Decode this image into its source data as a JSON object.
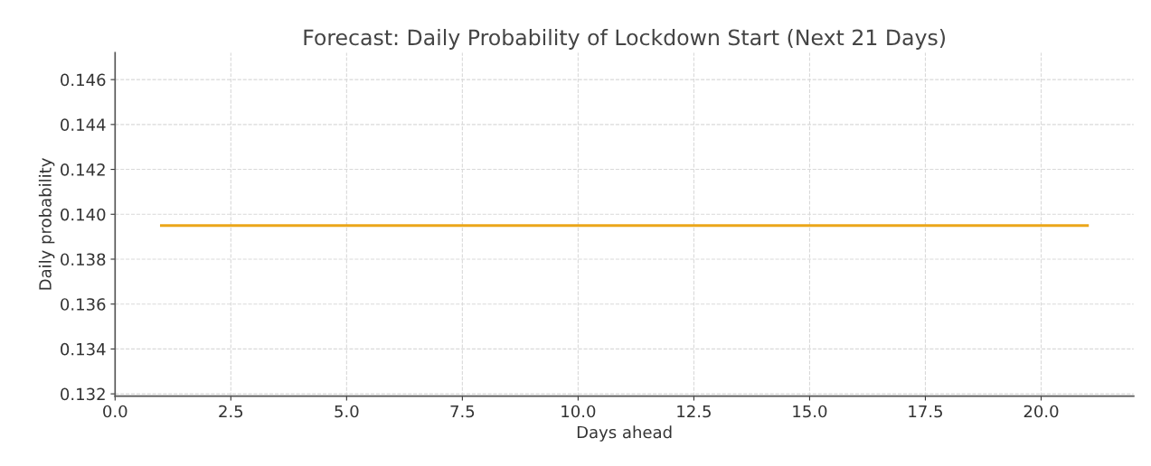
{
  "chart_data": {
    "type": "line",
    "title": "Forecast: Daily Probability of Lockdown Start (Next 21 Days)",
    "xlabel": "Days ahead",
    "ylabel": "Daily probability",
    "x": [
      1,
      21
    ],
    "series": [
      {
        "color": "#eba619",
        "values": [
          0.1395,
          0.1395
        ]
      }
    ],
    "xlim": [
      0,
      22
    ],
    "xticks": [
      {
        "value": 0,
        "label": "0.0"
      },
      {
        "value": 2.5,
        "label": "2.5"
      },
      {
        "value": 5,
        "label": "5.0"
      },
      {
        "value": 7.5,
        "label": "7.5"
      },
      {
        "value": 10,
        "label": "10.0"
      },
      {
        "value": 12.5,
        "label": "12.5"
      },
      {
        "value": 15,
        "label": "15.0"
      },
      {
        "value": 17.5,
        "label": "17.5"
      },
      {
        "value": 20,
        "label": "20.0"
      }
    ],
    "ylim": [
      0.1319,
      0.1472
    ],
    "yticks": [
      {
        "value": 0.132,
        "label": "0.132"
      },
      {
        "value": 0.134,
        "label": "0.134"
      },
      {
        "value": 0.136,
        "label": "0.136"
      },
      {
        "value": 0.138,
        "label": "0.138"
      },
      {
        "value": 0.14,
        "label": "0.140"
      },
      {
        "value": 0.142,
        "label": "0.142"
      },
      {
        "value": 0.144,
        "label": "0.144"
      },
      {
        "value": 0.146,
        "label": "0.146"
      }
    ],
    "grid": true,
    "marker": "none",
    "line_style": "solid"
  }
}
